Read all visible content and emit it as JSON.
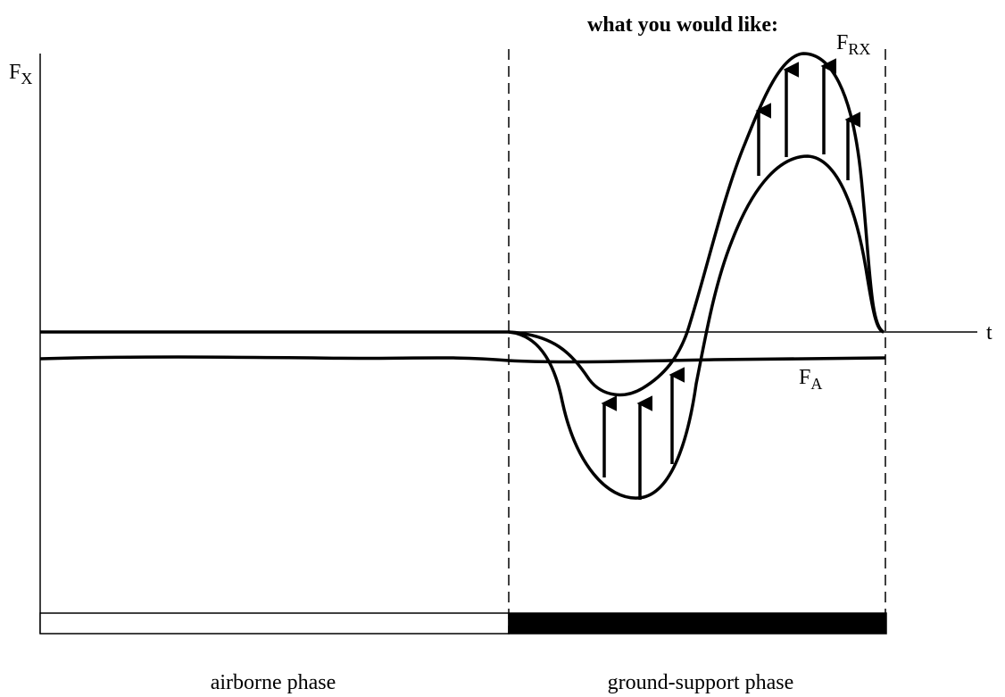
{
  "title": "what you would like:",
  "y_axis_label": {
    "main": "F",
    "sub": "X"
  },
  "x_axis_label": "t",
  "curve_labels": [
    {
      "main": "F",
      "sub": "RX"
    },
    {
      "main": "F",
      "sub": "A"
    }
  ],
  "phases": [
    "airborne phase",
    "ground-support phase"
  ]
}
